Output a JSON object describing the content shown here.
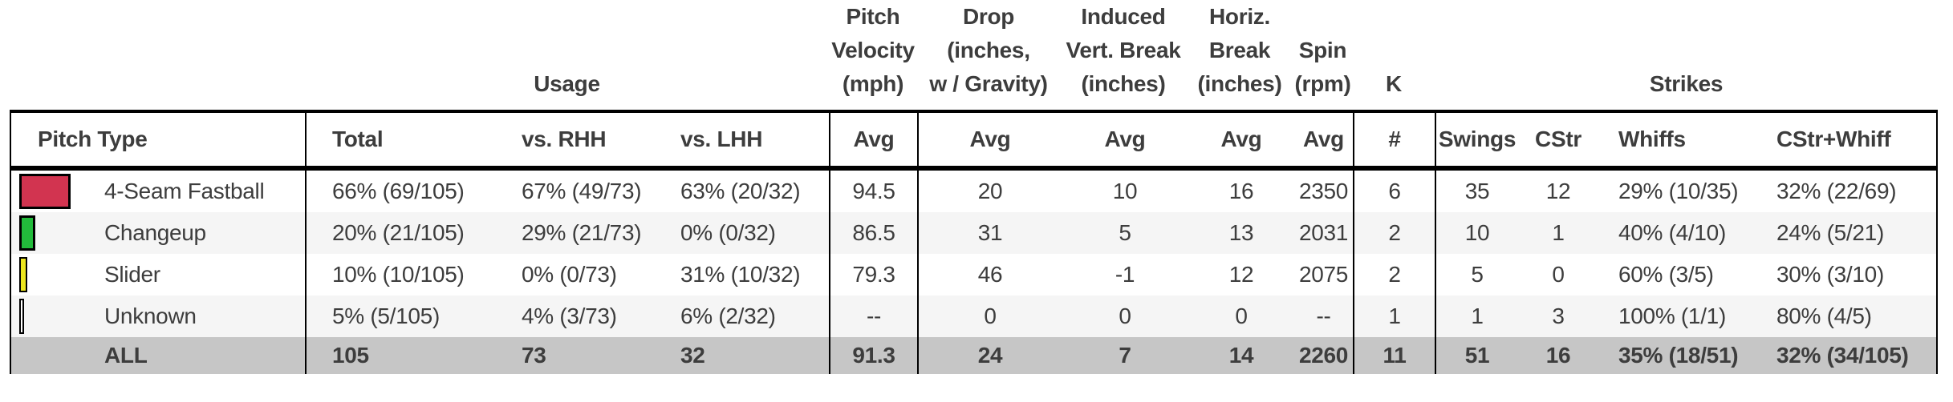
{
  "colors": {
    "text": "#3d3d3d",
    "border": "#000000",
    "row_alt_bg": "#f5f5f5",
    "totals_row_bg": "#c6c6c6",
    "fourseam_swatch": "#d23450",
    "changeup_swatch": "#22bb3b",
    "slider_swatch": "#ece61e",
    "unknown_swatch": "#ffffff"
  },
  "table": {
    "group_headers": {
      "usage": "Usage",
      "velocity": [
        "Pitch",
        "Velocity",
        "(mph)"
      ],
      "drop": [
        "Drop",
        "(inches,",
        "w / Gravity)"
      ],
      "induced_vert_break": [
        "Induced",
        "Vert. Break",
        "(inches)"
      ],
      "horiz_break": [
        "Horiz.",
        "Break",
        "(inches)"
      ],
      "spin": [
        "Spin",
        "(rpm)"
      ],
      "k": "K",
      "strikes": "Strikes"
    },
    "column_headers": {
      "pitch_type": "Pitch Type",
      "total": "Total",
      "vs_rhh": "vs. RHH",
      "vs_lhh": "vs. LHH",
      "velo_avg": "Avg",
      "drop_avg": "Avg",
      "ivb_avg": "Avg",
      "hb_avg": "Avg",
      "spin_avg": "Avg",
      "k_num": "#",
      "swings": "Swings",
      "cstr": "CStr",
      "whiffs": "Whiffs",
      "cstr_whiff": "CStr+Whiff"
    },
    "rows": [
      {
        "pitch": "4-Seam Fastball",
        "swatch_color": "#d23450",
        "swatch_width": 64,
        "total": "66% (69/105)",
        "rhh": "67% (49/73)",
        "lhh": "63% (20/32)",
        "velo": "94.5",
        "drop": "20",
        "ivb": "10",
        "horiz": "16",
        "spin": "2350",
        "k": "6",
        "swings": "35",
        "cstr": "12",
        "whiffs": "29% (10/35)",
        "cstr_whiff": "32% (22/69)"
      },
      {
        "pitch": "Changeup",
        "swatch_color": "#22bb3b",
        "swatch_width": 20,
        "total": "20% (21/105)",
        "rhh": "29% (21/73)",
        "lhh": "0% (0/32)",
        "velo": "86.5",
        "drop": "31",
        "ivb": "5",
        "horiz": "13",
        "spin": "2031",
        "k": "2",
        "swings": "10",
        "cstr": "1",
        "whiffs": "40% (4/10)",
        "cstr_whiff": "24% (5/21)"
      },
      {
        "pitch": "Slider",
        "swatch_color": "#ece61e",
        "swatch_width": 10,
        "total": "10% (10/105)",
        "rhh": "0% (0/73)",
        "lhh": "31% (10/32)",
        "velo": "79.3",
        "drop": "46",
        "ivb": "-1",
        "horiz": "12",
        "spin": "2075",
        "k": "2",
        "swings": "5",
        "cstr": "0",
        "whiffs": "60% (3/5)",
        "cstr_whiff": "30% (3/10)"
      },
      {
        "pitch": "Unknown",
        "swatch_color": "#ffffff",
        "swatch_width": 6,
        "total": "5% (5/105)",
        "rhh": "4% (3/73)",
        "lhh": "6% (2/32)",
        "velo": "--",
        "drop": "0",
        "ivb": "0",
        "horiz": "0",
        "spin": "--",
        "k": "1",
        "swings": "1",
        "cstr": "3",
        "whiffs": "100% (1/1)",
        "cstr_whiff": "80% (4/5)"
      }
    ],
    "totals_row": {
      "pitch": "ALL",
      "total": "105",
      "rhh": "73",
      "lhh": "32",
      "velo": "91.3",
      "drop": "24",
      "ivb": "7",
      "horiz": "14",
      "spin": "2260",
      "k": "11",
      "swings": "51",
      "cstr": "16",
      "whiffs": "35% (18/51)",
      "cstr_whiff": "32% (34/105)"
    }
  }
}
